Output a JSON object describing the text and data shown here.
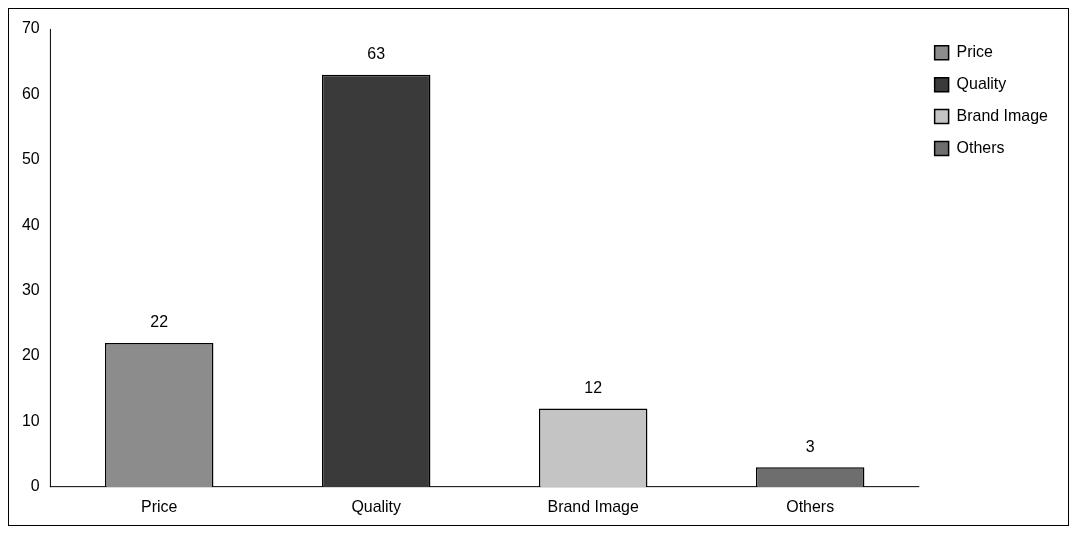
{
  "chart_data": {
    "type": "bar",
    "categories": [
      "Price",
      "Quality",
      "Brand Image",
      "Others"
    ],
    "series": [
      {
        "name": "Price",
        "color": "#8c8c8c",
        "values": [
          22,
          null,
          null,
          null
        ]
      },
      {
        "name": "Quality",
        "color": "#3a3a3a",
        "values": [
          null,
          63,
          null,
          null
        ]
      },
      {
        "name": "Brand Image",
        "color": "#c4c4c4",
        "values": [
          null,
          null,
          12,
          null
        ]
      },
      {
        "name": "Others",
        "color": "#6e6e6e",
        "values": [
          null,
          null,
          null,
          3
        ]
      }
    ],
    "ylim": [
      0,
      70
    ],
    "yticks": [
      0,
      10,
      20,
      30,
      40,
      50,
      60,
      70
    ],
    "grid": false,
    "legend": "top right",
    "data_labels": true
  }
}
